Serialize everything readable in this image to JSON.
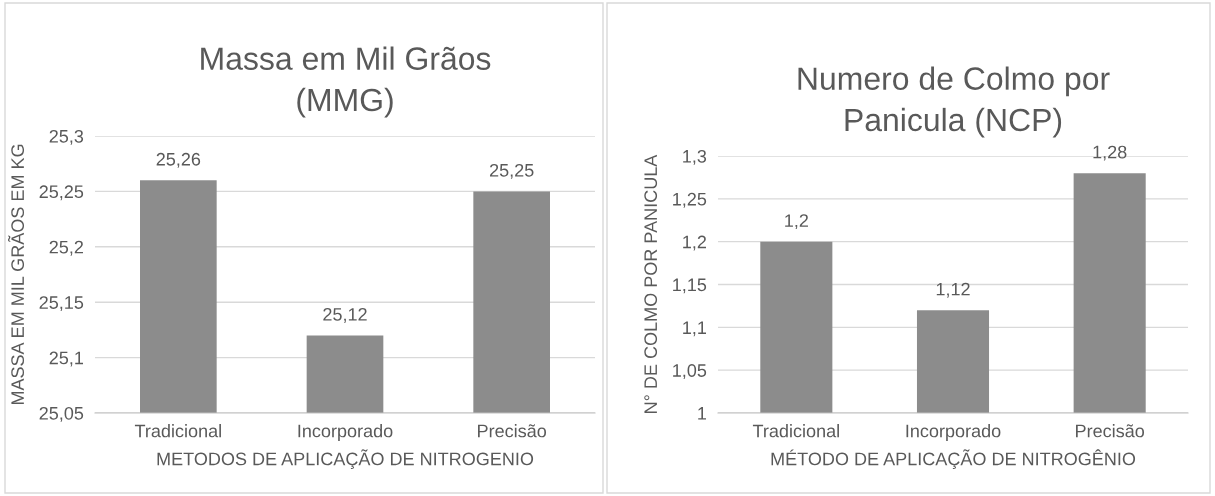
{
  "chart_data": [
    {
      "type": "bar",
      "title": "Massa em Mil Grãos\n(MMG)",
      "xlabel": "METODOS DE APLICAÇÃO DE NITROGENIO",
      "ylabel": "MASSA EM MIL GRÃOS EM KG",
      "categories": [
        "Tradicional",
        "Incorporado",
        "Precisão"
      ],
      "values": [
        25.26,
        25.12,
        25.25
      ],
      "value_labels": [
        "25,26",
        "25,12",
        "25,25"
      ],
      "color": "#8c8c8c",
      "ylim": [
        25.05,
        25.3
      ],
      "yticks": [
        {
          "value": 25.05,
          "label": "25,05"
        },
        {
          "value": 25.1,
          "label": "25,1"
        },
        {
          "value": 25.15,
          "label": "25,15"
        },
        {
          "value": 25.2,
          "label": "25,2"
        },
        {
          "value": 25.25,
          "label": "25,25"
        },
        {
          "value": 25.3,
          "label": "25,3"
        }
      ],
      "grid": "y"
    },
    {
      "type": "bar",
      "title": "Numero de Colmo por\nPanicula (NCP)",
      "xlabel": "MÉTODO DE APLICAÇÃO DE NITROGÊNIO",
      "ylabel": "N° DE COLMO POR PANICULA",
      "categories": [
        "Tradicional",
        "Incorporado",
        "Precisão"
      ],
      "values": [
        1.2,
        1.12,
        1.28
      ],
      "value_labels": [
        "1,2",
        "1,12",
        "1,28"
      ],
      "color": "#8c8c8c",
      "ylim": [
        1,
        1.3
      ],
      "yticks": [
        {
          "value": 1,
          "label": "1"
        },
        {
          "value": 1.05,
          "label": "1,05"
        },
        {
          "value": 1.1,
          "label": "1,1"
        },
        {
          "value": 1.15,
          "label": "1,15"
        },
        {
          "value": 1.2,
          "label": "1,2"
        },
        {
          "value": 1.25,
          "label": "1,25"
        },
        {
          "value": 1.3,
          "label": "1,3"
        }
      ],
      "grid": "y"
    }
  ]
}
